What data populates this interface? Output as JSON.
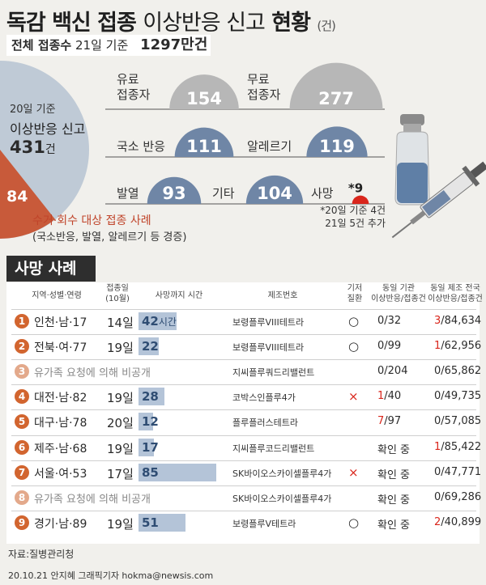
{
  "header": {
    "title_bold_1": "독감 백신 접종",
    "title_light": "이상반응 신고",
    "title_bold_2": "현황",
    "title_unit": "(건)",
    "total_label": "전체 접종수",
    "total_basis": "21일 기준",
    "total_value": "1297만건"
  },
  "pie": {
    "basis": "20일 기준",
    "label": "이상반응 신고",
    "total": "431",
    "total_unit": "건",
    "slice_value": "84",
    "slice_label": "수거·회수 대상 접종 사례",
    "slice_note": "(국소반응, 발열, 알레르기 등 경증)",
    "colors": {
      "pie": "#bfcad6",
      "slice": "#c85a3a"
    }
  },
  "chart_data": {
    "type": "bar",
    "categories": [
      "유료 접종자",
      "무료 접종자",
      "국소 반응",
      "알레르기",
      "발열",
      "기타",
      "사망"
    ],
    "values": [
      154,
      277,
      111,
      119,
      93,
      104,
      9
    ],
    "labels": [
      "154",
      "277",
      "111",
      "119",
      "93",
      "104",
      "*9"
    ],
    "colors": {
      "gray": "#b7b7b7",
      "blue": "#6f86a6",
      "red": "#d9261c"
    },
    "note_1": "*20일 기준 4건",
    "note_2": "21일 5건 추가"
  },
  "cats": {
    "paid_1": "유료",
    "paid_2": "접종자",
    "free_1": "무료",
    "free_2": "접종자",
    "local": "국소 반응",
    "allergy": "알레르기",
    "fever": "발열",
    "other": "기타",
    "death": "사망"
  },
  "death_table": {
    "section_title": "사망 사례",
    "headers": {
      "region": "지역·성별·연령",
      "date_1": "접종일",
      "date_2": "(10월)",
      "hours": "사망까지 시간",
      "maker": "제조번호",
      "prior_1": "기저",
      "prior_2": "질환",
      "same_org_1": "동일 기관",
      "same_org_2": "이상반응/접종건",
      "same_lot_1": "동일 제조 전국",
      "same_lot_2": "이상반응/접종건"
    },
    "rows": [
      {
        "no": "1",
        "region": "인천·남·17",
        "date": "14일",
        "hours": 42,
        "hours_label": "42",
        "hours_unit": "시간",
        "maker": "보령플루VIII테트라",
        "prior": "○",
        "org_hi": "",
        "org_rest": "0/32",
        "lot_hi": "3",
        "lot_rest": "/84,634"
      },
      {
        "no": "2",
        "region": "전북·여·77",
        "date": "19일",
        "hours": 22,
        "hours_label": "22",
        "hours_unit": "",
        "maker": "보령플루VIII테트라",
        "prior": "○",
        "org_hi": "",
        "org_rest": "0/99",
        "lot_hi": "1",
        "lot_rest": "/62,956"
      },
      {
        "no": "3",
        "region": "유가족 요청에 의해 비공개",
        "date": "",
        "hours": 0,
        "hours_label": "",
        "hours_unit": "",
        "maker": "지씨플루쿼드리밸런트",
        "prior": "",
        "org_hi": "",
        "org_rest": "0/204",
        "lot_hi": "",
        "lot_rest": "0/65,862"
      },
      {
        "no": "4",
        "region": "대전·남·82",
        "date": "19일",
        "hours": 28,
        "hours_label": "28",
        "hours_unit": "",
        "maker": "코박스인플루4가",
        "prior": "×",
        "org_hi": "1",
        "org_rest": "/40",
        "lot_hi": "",
        "lot_rest": "0/49,735"
      },
      {
        "no": "5",
        "region": "대구·남·78",
        "date": "20일",
        "hours": 12,
        "hours_label": "12",
        "hours_unit": "",
        "maker": "플루플러스테트라",
        "prior": "",
        "org_hi": "7",
        "org_rest": "/97",
        "lot_hi": "",
        "lot_rest": "0/57,085"
      },
      {
        "no": "6",
        "region": "제주·남·68",
        "date": "19일",
        "hours": 17,
        "hours_label": "17",
        "hours_unit": "",
        "maker": "지씨플루코드리밸런트",
        "prior": "",
        "org_hi": "",
        "org_rest": "확인 중",
        "lot_hi": "1",
        "lot_rest": "/85,422"
      },
      {
        "no": "7",
        "region": "서울·여·53",
        "date": "17일",
        "hours": 85,
        "hours_label": "85",
        "hours_unit": "",
        "maker": "SK바이오스카이셀플루4가",
        "prior": "×",
        "org_hi": "",
        "org_rest": "확인 중",
        "lot_hi": "",
        "lot_rest": "0/47,771"
      },
      {
        "no": "8",
        "region": "유가족 요청에 의해 비공개",
        "date": "",
        "hours": 0,
        "hours_label": "",
        "hours_unit": "",
        "maker": "SK바이오스카이셀플루4가",
        "prior": "",
        "org_hi": "",
        "org_rest": "확인 중",
        "lot_hi": "",
        "lot_rest": "0/69,286"
      },
      {
        "no": "9",
        "region": "경기·남·89",
        "date": "19일",
        "hours": 51,
        "hours_label": "51",
        "hours_unit": "",
        "maker": "보령플루V테트라",
        "prior": "○",
        "org_hi": "",
        "org_rest": "확인 중",
        "lot_hi": "2",
        "lot_rest": "/40,899"
      }
    ],
    "colors": {
      "circle": "#d2652f",
      "circle_private": "#e3a98b",
      "bar": "#b4c4d8",
      "highlight": "#d9261c"
    }
  },
  "footer": {
    "source": "자료:질병관리청",
    "credit": "20.10.21 안지혜 그래픽기자 hokma@newsis.com"
  }
}
